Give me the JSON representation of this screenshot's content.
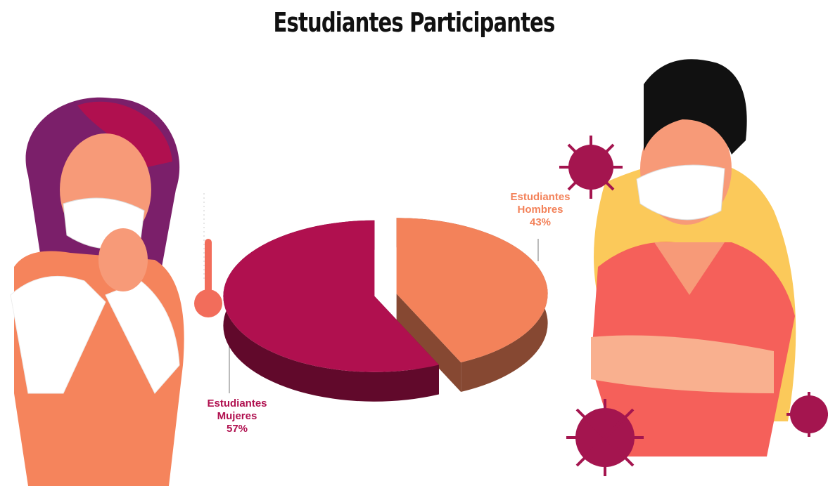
{
  "chart_data": {
    "type": "pie",
    "title": "Estudiantes Participantes",
    "categories": [
      "Estudiantes Mujeres",
      "Estudiantes Hombres"
    ],
    "values": [
      57,
      43
    ],
    "value_labels": [
      "57%",
      "43%"
    ],
    "colors": [
      "#b0104f",
      "#f3825a"
    ]
  }
}
